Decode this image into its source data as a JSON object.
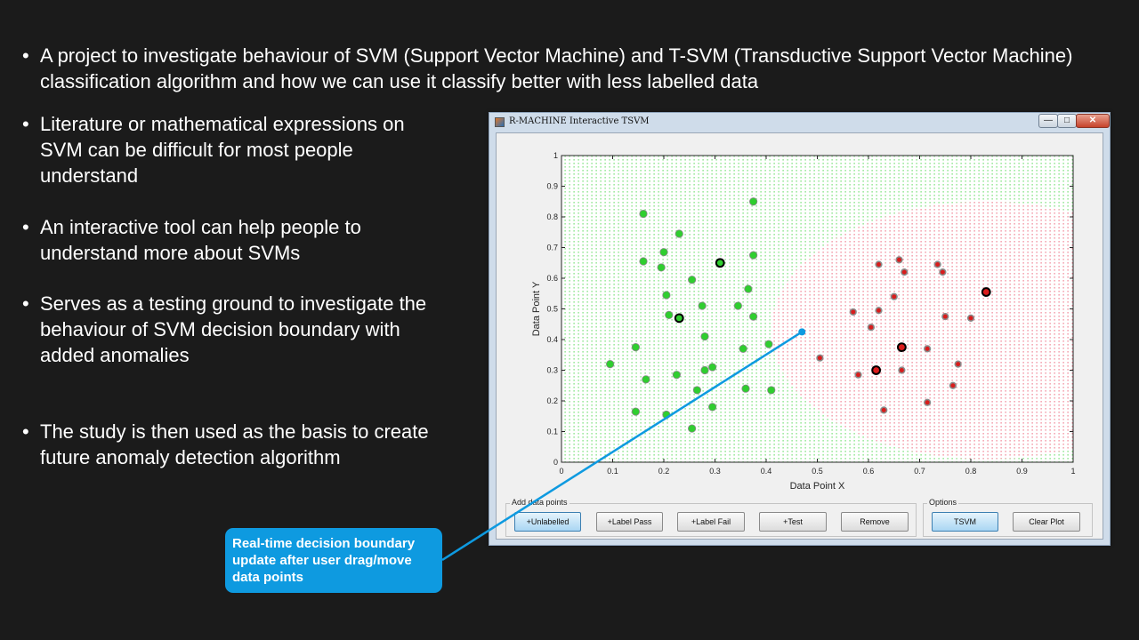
{
  "slide": {
    "bullets": [
      "A project to investigate behaviour of SVM (Support Vector Machine) and T-SVM (Transductive Support Vector Machine) classification algorithm and how we can use it classify better with less labelled data",
      "Literature or mathematical expressions on SVM can be difficult for most people understand",
      "An interactive tool can help people to understand more about SVMs",
      "Serves as a testing ground to investigate the behaviour of SVM decision boundary with added anomalies",
      "The study is then used as the basis to create future anomaly detection algorithm"
    ],
    "bullet_symbol": "•",
    "callout": "Real-time decision boundary update after user drag/move data points"
  },
  "window": {
    "title": "R-MACHINE Interactive TSVM",
    "minimize_glyph": "—",
    "maximize_glyph": "□",
    "close_glyph": "✕",
    "add_group_label": "Add data points",
    "options_group_label": "Options",
    "buttons": {
      "unlabelled": "+Unlabelled",
      "label_pass": "+Label Pass",
      "label_fail": "+Label Fail",
      "test": "+Test",
      "remove": "Remove",
      "tsvm": "TSVM",
      "clear_plot": "Clear Plot"
    }
  },
  "colors": {
    "background": "#1b1b1b",
    "callout": "#0e9ae0",
    "pass_region": "#7ee07e",
    "fail_region": "#f08a9a",
    "pass_point": "#2fce2f",
    "fail_point": "#d91c1c"
  },
  "chart_data": {
    "type": "scatter",
    "xlabel": "Data Point X",
    "ylabel": "Data Point Y",
    "xlim": [
      0,
      1
    ],
    "ylim": [
      0,
      1
    ],
    "xticks": [
      "0",
      "0.1",
      "0.2",
      "0.3",
      "0.4",
      "0.5",
      "0.6",
      "0.7",
      "0.8",
      "0.9",
      "1"
    ],
    "yticks": [
      "0",
      "0.1",
      "0.2",
      "0.3",
      "0.4",
      "0.5",
      "0.6",
      "0.7",
      "0.8",
      "0.9",
      "1"
    ],
    "decision_region": {
      "fail_center": [
        0.83,
        0.43
      ],
      "fail_radius": 0.42
    },
    "series": [
      {
        "class": "pass",
        "points": [
          [
            0.16,
            0.81
          ],
          [
            0.23,
            0.745
          ],
          [
            0.375,
            0.85
          ],
          [
            0.16,
            0.655
          ],
          [
            0.2,
            0.685
          ],
          [
            0.195,
            0.635
          ],
          [
            0.375,
            0.675
          ],
          [
            0.255,
            0.595
          ],
          [
            0.365,
            0.565
          ],
          [
            0.205,
            0.545
          ],
          [
            0.275,
            0.51
          ],
          [
            0.345,
            0.51
          ],
          [
            0.21,
            0.48
          ],
          [
            0.375,
            0.475
          ],
          [
            0.28,
            0.41
          ],
          [
            0.145,
            0.375
          ],
          [
            0.355,
            0.37
          ],
          [
            0.405,
            0.385
          ],
          [
            0.095,
            0.32
          ],
          [
            0.295,
            0.31
          ],
          [
            0.28,
            0.3
          ],
          [
            0.225,
            0.285
          ],
          [
            0.165,
            0.27
          ],
          [
            0.265,
            0.235
          ],
          [
            0.36,
            0.24
          ],
          [
            0.41,
            0.235
          ],
          [
            0.295,
            0.18
          ],
          [
            0.145,
            0.165
          ],
          [
            0.205,
            0.155
          ],
          [
            0.255,
            0.11
          ]
        ]
      },
      {
        "class": "fail",
        "points": [
          [
            0.66,
            0.66
          ],
          [
            0.735,
            0.645
          ],
          [
            0.62,
            0.645
          ],
          [
            0.67,
            0.62
          ],
          [
            0.745,
            0.62
          ],
          [
            0.65,
            0.54
          ],
          [
            0.57,
            0.49
          ],
          [
            0.62,
            0.495
          ],
          [
            0.75,
            0.475
          ],
          [
            0.8,
            0.47
          ],
          [
            0.605,
            0.44
          ],
          [
            0.715,
            0.37
          ],
          [
            0.505,
            0.34
          ],
          [
            0.775,
            0.32
          ],
          [
            0.665,
            0.3
          ],
          [
            0.58,
            0.285
          ],
          [
            0.765,
            0.25
          ],
          [
            0.715,
            0.195
          ],
          [
            0.63,
            0.17
          ]
        ]
      },
      {
        "class": "labelled-pass",
        "points": [
          [
            0.31,
            0.65
          ],
          [
            0.23,
            0.47
          ]
        ]
      },
      {
        "class": "labelled-fail",
        "points": [
          [
            0.83,
            0.555
          ],
          [
            0.665,
            0.375
          ],
          [
            0.615,
            0.3
          ]
        ]
      }
    ],
    "dragged_point": [
      0.47,
      0.425
    ]
  }
}
